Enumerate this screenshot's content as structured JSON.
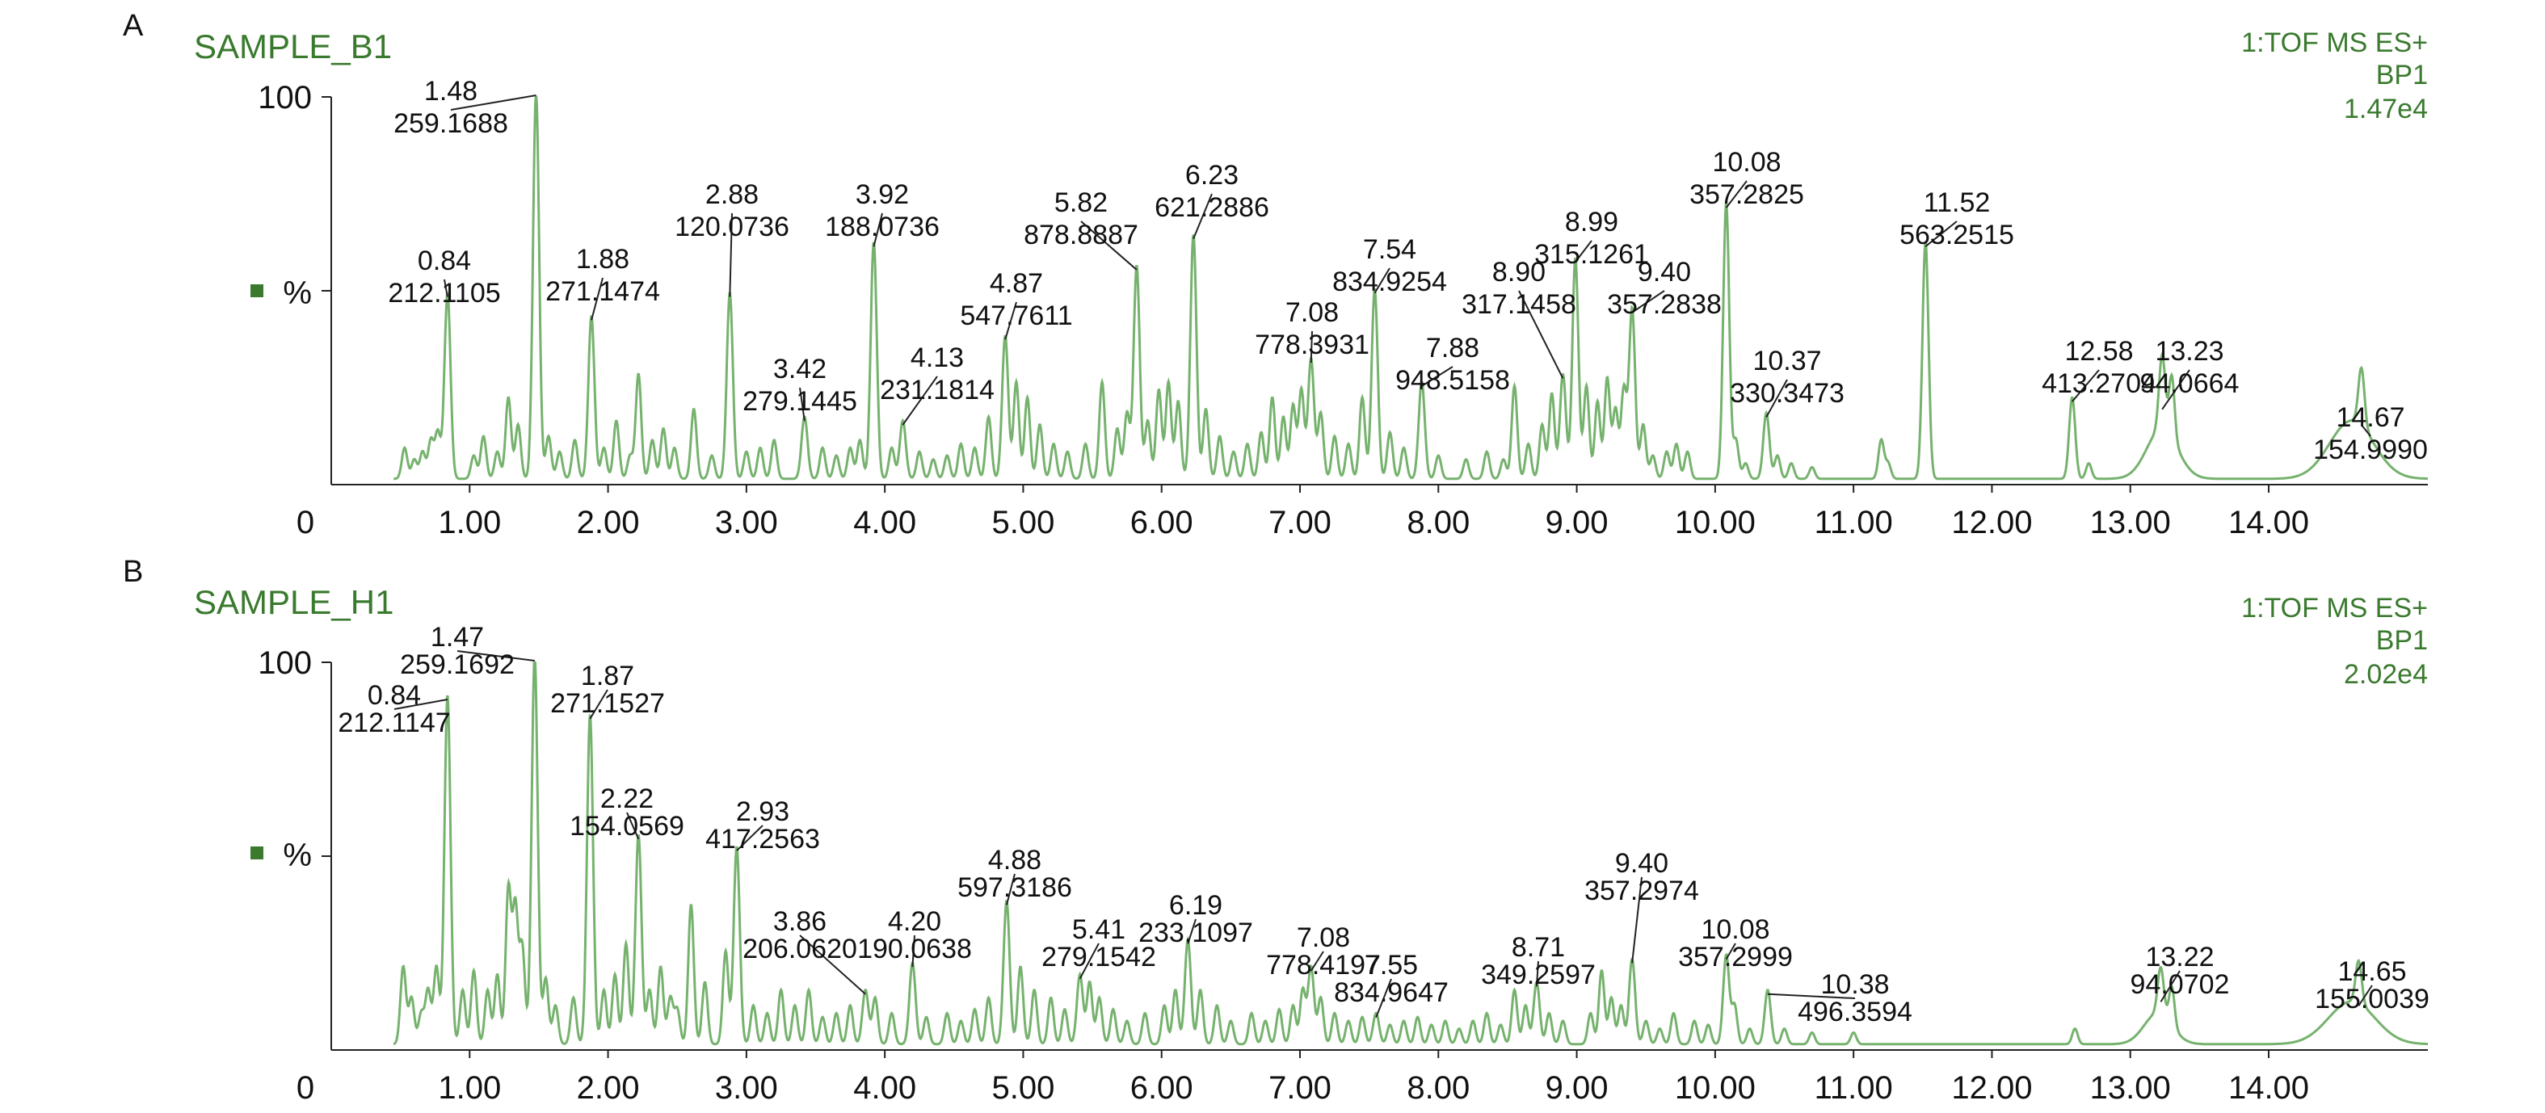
{
  "chart_data": [
    {
      "panel_label": "A",
      "type": "line",
      "sample": "SAMPLE_B1",
      "instrument": [
        "1:TOF MS ES+",
        "BP1",
        "1.47e4"
      ],
      "y_ticks": [
        "100",
        "%",
        "0"
      ],
      "x_ticks": [
        "1.00",
        "2.00",
        "3.00",
        "4.00",
        "5.00",
        "6.00",
        "7.00",
        "8.00",
        "9.00",
        "10.00",
        "11.00",
        "12.00",
        "13.00",
        "14.00"
      ],
      "xlim": [
        0,
        15.15
      ],
      "ylim": [
        0,
        100
      ],
      "series_color": "#76b26e",
      "peaks": [
        {
          "rt": "0.84",
          "mz": "212.1105",
          "x": 0.84,
          "y": 48
        },
        {
          "rt": "1.48",
          "mz": "259.1688",
          "x": 1.48,
          "y": 100
        },
        {
          "rt": "1.88",
          "mz": "271.1474",
          "x": 1.88,
          "y": 42
        },
        {
          "rt": "2.88",
          "mz": "120.0736",
          "x": 2.88,
          "y": 48
        },
        {
          "rt": "3.42",
          "mz": "279.1445",
          "x": 3.42,
          "y": 16
        },
        {
          "rt": "3.92",
          "mz": "188.0736",
          "x": 3.92,
          "y": 61
        },
        {
          "rt": "4.13",
          "mz": "231.1814",
          "x": 4.13,
          "y": 15
        },
        {
          "rt": "4.87",
          "mz": "547.7611",
          "x": 4.87,
          "y": 37
        },
        {
          "rt": "5.82",
          "mz": "878.8887",
          "x": 5.82,
          "y": 55
        },
        {
          "rt": "6.23",
          "mz": "621.2886",
          "x": 6.23,
          "y": 63
        },
        {
          "rt": "7.08",
          "mz": "778.3931",
          "x": 7.08,
          "y": 31
        },
        {
          "rt": "7.54",
          "mz": "834.9254",
          "x": 7.54,
          "y": 49
        },
        {
          "rt": "7.88",
          "mz": "948.5158",
          "x": 7.88,
          "y": 25
        },
        {
          "rt": "8.90",
          "mz": "317.1458",
          "x": 8.9,
          "y": 27
        },
        {
          "rt": "8.99",
          "mz": "315.1261",
          "x": 8.99,
          "y": 57
        },
        {
          "rt": "9.40",
          "mz": "357.2838",
          "x": 9.4,
          "y": 44
        },
        {
          "rt": "10.08",
          "mz": "357.2825",
          "x": 10.08,
          "y": 71
        },
        {
          "rt": "10.37",
          "mz": "330.3473",
          "x": 10.37,
          "y": 17
        },
        {
          "rt": "11.52",
          "mz": "563.2515",
          "x": 11.52,
          "y": 61
        },
        {
          "rt": "12.58",
          "mz": "413.2704",
          "x": 12.58,
          "y": 21
        },
        {
          "rt": "13.23",
          "mz": "94.0664",
          "x": 13.23,
          "y": 19
        },
        {
          "rt": "14.67",
          "mz": "154.9990",
          "x": 14.67,
          "y": 15
        }
      ],
      "minor_peaks": [
        [
          0.53,
          8
        ],
        [
          0.6,
          5
        ],
        [
          0.66,
          7
        ],
        [
          0.72,
          10
        ],
        [
          0.77,
          12
        ],
        [
          1.03,
          6
        ],
        [
          1.1,
          11
        ],
        [
          1.2,
          7
        ],
        [
          1.28,
          21
        ],
        [
          1.35,
          14
        ],
        [
          1.57,
          11
        ],
        [
          1.65,
          7
        ],
        [
          1.76,
          10
        ],
        [
          1.97,
          8
        ],
        [
          2.06,
          15
        ],
        [
          2.16,
          6
        ],
        [
          2.22,
          27
        ],
        [
          2.32,
          10
        ],
        [
          2.4,
          13
        ],
        [
          2.48,
          8
        ],
        [
          2.62,
          18
        ],
        [
          2.75,
          6
        ],
        [
          3.0,
          7
        ],
        [
          3.1,
          8
        ],
        [
          3.2,
          10
        ],
        [
          3.55,
          8
        ],
        [
          3.65,
          6
        ],
        [
          3.75,
          8
        ],
        [
          3.82,
          10
        ],
        [
          4.05,
          8
        ],
        [
          4.25,
          7
        ],
        [
          4.35,
          5
        ],
        [
          4.45,
          6
        ],
        [
          4.55,
          9
        ],
        [
          4.65,
          8
        ],
        [
          4.75,
          16
        ],
        [
          4.95,
          25
        ],
        [
          5.03,
          21
        ],
        [
          5.12,
          14
        ],
        [
          5.22,
          9
        ],
        [
          5.32,
          7
        ],
        [
          5.45,
          9
        ],
        [
          5.57,
          25
        ],
        [
          5.68,
          13
        ],
        [
          5.75,
          17
        ],
        [
          5.9,
          15
        ],
        [
          5.98,
          23
        ],
        [
          6.05,
          25
        ],
        [
          6.12,
          20
        ],
        [
          6.32,
          18
        ],
        [
          6.42,
          11
        ],
        [
          6.52,
          7
        ],
        [
          6.62,
          9
        ],
        [
          6.72,
          12
        ],
        [
          6.8,
          21
        ],
        [
          6.88,
          16
        ],
        [
          6.95,
          19
        ],
        [
          7.01,
          23
        ],
        [
          7.15,
          17
        ],
        [
          7.25,
          11
        ],
        [
          7.35,
          9
        ],
        [
          7.45,
          21
        ],
        [
          7.65,
          12
        ],
        [
          7.75,
          8
        ],
        [
          8.0,
          6
        ],
        [
          8.2,
          5
        ],
        [
          8.35,
          7
        ],
        [
          8.47,
          5
        ],
        [
          8.55,
          24
        ],
        [
          8.65,
          9
        ],
        [
          8.75,
          14
        ],
        [
          8.82,
          22
        ],
        [
          9.07,
          24
        ],
        [
          9.15,
          20
        ],
        [
          9.22,
          26
        ],
        [
          9.28,
          18
        ],
        [
          9.34,
          23
        ],
        [
          9.48,
          14
        ],
        [
          9.55,
          6
        ],
        [
          9.65,
          7
        ],
        [
          9.72,
          9
        ],
        [
          9.8,
          7
        ],
        [
          10.15,
          10
        ],
        [
          10.22,
          4
        ],
        [
          10.45,
          6
        ],
        [
          10.55,
          4
        ],
        [
          10.7,
          3
        ],
        [
          11.2,
          10
        ],
        [
          11.25,
          4
        ],
        [
          12.7,
          4
        ],
        [
          13.3,
          16
        ]
      ],
      "humps": [
        [
          13.23,
          0.11,
          13
        ],
        [
          14.6,
          0.16,
          15
        ]
      ]
    },
    {
      "panel_label": "B",
      "type": "line",
      "sample": "SAMPLE_H1",
      "instrument": [
        "1:TOF MS ES+",
        "BP1",
        "2.02e4"
      ],
      "y_ticks": [
        "100",
        "%",
        "0"
      ],
      "x_ticks": [
        "1.00",
        "2.00",
        "3.00",
        "4.00",
        "5.00",
        "6.00",
        "7.00",
        "8.00",
        "9.00",
        "10.00",
        "11.00",
        "12.00",
        "13.00",
        "14.00"
      ],
      "xlim": [
        0,
        15.15
      ],
      "ylim": [
        0,
        100
      ],
      "series_color": "#76b26e",
      "peaks": [
        {
          "rt": "0.84",
          "mz": "212.1147",
          "x": 0.84,
          "y": 90
        },
        {
          "rt": "1.47",
          "mz": "259.1692",
          "x": 1.47,
          "y": 100
        },
        {
          "rt": "1.87",
          "mz": "271.1527",
          "x": 1.87,
          "y": 85
        },
        {
          "rt": "2.22",
          "mz": "154.0569",
          "x": 2.22,
          "y": 54
        },
        {
          "rt": "2.93",
          "mz": "417.2563",
          "x": 2.93,
          "y": 51
        },
        {
          "rt": "3.86",
          "mz": "206.0620",
          "x": 3.86,
          "y": 14
        },
        {
          "rt": "4.20",
          "mz": "190.0638",
          "x": 4.2,
          "y": 21
        },
        {
          "rt": "4.88",
          "mz": "597.3186",
          "x": 4.88,
          "y": 37
        },
        {
          "rt": "5.41",
          "mz": "279.1542",
          "x": 5.41,
          "y": 18
        },
        {
          "rt": "6.19",
          "mz": "233.1097",
          "x": 6.19,
          "y": 27
        },
        {
          "rt": "7.08",
          "mz": "778.4197",
          "x": 7.08,
          "y": 20
        },
        {
          "rt": "7.55",
          "mz": "834.9647",
          "x": 7.55,
          "y": 8
        },
        {
          "rt": "8.71",
          "mz": "349.2597",
          "x": 8.71,
          "y": 16
        },
        {
          "rt": "9.40",
          "mz": "357.2974",
          "x": 9.4,
          "y": 22
        },
        {
          "rt": "10.08",
          "mz": "357.2999",
          "x": 10.08,
          "y": 23
        },
        {
          "rt": "10.38",
          "mz": "496.3594",
          "x": 10.38,
          "y": 14
        },
        {
          "rt": "13.22",
          "mz": "94.0702",
          "x": 13.22,
          "y": 12
        },
        {
          "rt": "14.65",
          "mz": "155.0039",
          "x": 14.65,
          "y": 11
        }
      ],
      "minor_peaks": [
        [
          0.52,
          20
        ],
        [
          0.58,
          12
        ],
        [
          0.65,
          8
        ],
        [
          0.7,
          14
        ],
        [
          0.76,
          20
        ],
        [
          0.95,
          14
        ],
        [
          1.03,
          19
        ],
        [
          1.13,
          14
        ],
        [
          1.2,
          18
        ],
        [
          1.28,
          40
        ],
        [
          1.33,
          35
        ],
        [
          1.38,
          25
        ],
        [
          1.55,
          17
        ],
        [
          1.62,
          10
        ],
        [
          1.75,
          12
        ],
        [
          1.97,
          14
        ],
        [
          2.05,
          18
        ],
        [
          2.13,
          26
        ],
        [
          2.3,
          14
        ],
        [
          2.38,
          20
        ],
        [
          2.45,
          12
        ],
        [
          2.5,
          9
        ],
        [
          2.6,
          36
        ],
        [
          2.7,
          16
        ],
        [
          2.85,
          24
        ],
        [
          3.05,
          10
        ],
        [
          3.15,
          8
        ],
        [
          3.25,
          14
        ],
        [
          3.35,
          10
        ],
        [
          3.45,
          14
        ],
        [
          3.55,
          7
        ],
        [
          3.65,
          8
        ],
        [
          3.75,
          10
        ],
        [
          3.93,
          12
        ],
        [
          4.05,
          8
        ],
        [
          4.3,
          7
        ],
        [
          4.45,
          8
        ],
        [
          4.55,
          6
        ],
        [
          4.65,
          9
        ],
        [
          4.75,
          12
        ],
        [
          4.98,
          20
        ],
        [
          5.08,
          14
        ],
        [
          5.2,
          12
        ],
        [
          5.3,
          9
        ],
        [
          5.48,
          16
        ],
        [
          5.55,
          12
        ],
        [
          5.65,
          9
        ],
        [
          5.75,
          6
        ],
        [
          5.88,
          8
        ],
        [
          6.02,
          10
        ],
        [
          6.1,
          14
        ],
        [
          6.28,
          14
        ],
        [
          6.4,
          10
        ],
        [
          6.5,
          6
        ],
        [
          6.65,
          8
        ],
        [
          6.75,
          6
        ],
        [
          6.85,
          9
        ],
        [
          6.95,
          10
        ],
        [
          7.02,
          14
        ],
        [
          7.15,
          12
        ],
        [
          7.25,
          8
        ],
        [
          7.35,
          6
        ],
        [
          7.45,
          7
        ],
        [
          7.65,
          5
        ],
        [
          7.75,
          6
        ],
        [
          7.85,
          7
        ],
        [
          7.95,
          5
        ],
        [
          8.05,
          6
        ],
        [
          8.15,
          4
        ],
        [
          8.25,
          6
        ],
        [
          8.35,
          8
        ],
        [
          8.45,
          5
        ],
        [
          8.55,
          14
        ],
        [
          8.63,
          10
        ],
        [
          8.8,
          8
        ],
        [
          8.9,
          6
        ],
        [
          9.1,
          8
        ],
        [
          9.18,
          19
        ],
        [
          9.25,
          12
        ],
        [
          9.32,
          10
        ],
        [
          9.5,
          6
        ],
        [
          9.6,
          4
        ],
        [
          9.7,
          8
        ],
        [
          9.85,
          6
        ],
        [
          9.95,
          5
        ],
        [
          10.14,
          10
        ],
        [
          10.25,
          4
        ],
        [
          10.5,
          4
        ],
        [
          10.7,
          3
        ],
        [
          11.0,
          3
        ],
        [
          12.6,
          4
        ],
        [
          13.3,
          10
        ]
      ],
      "humps": [
        [
          13.2,
          0.1,
          8
        ],
        [
          14.6,
          0.17,
          11
        ]
      ]
    }
  ]
}
